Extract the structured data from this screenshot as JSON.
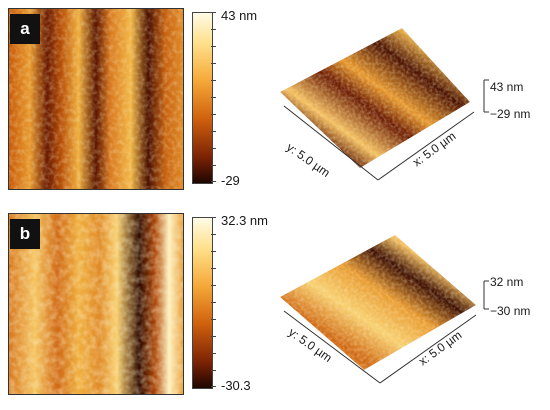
{
  "colormap": {
    "dark": "#2a0800",
    "mid": "#c85a0a",
    "bright": "#ffe9a8",
    "light": "#fffbe6"
  },
  "panels": [
    {
      "label": "a",
      "colorbar": {
        "max": "43 nm",
        "min": "-29"
      },
      "surface": {
        "z_top": "43 nm",
        "z_bottom": "−29 nm",
        "y_axis": "y: 5.0 µm",
        "x_axis": "x: 5.0 µm"
      }
    },
    {
      "label": "b",
      "colorbar": {
        "max": "32.3 nm",
        "min": "-30.3"
      },
      "surface": {
        "z_top": "32 nm",
        "z_bottom": "−30 nm",
        "y_axis": "y: 5.0 µm",
        "x_axis": "x: 5.0 µm"
      }
    }
  ]
}
